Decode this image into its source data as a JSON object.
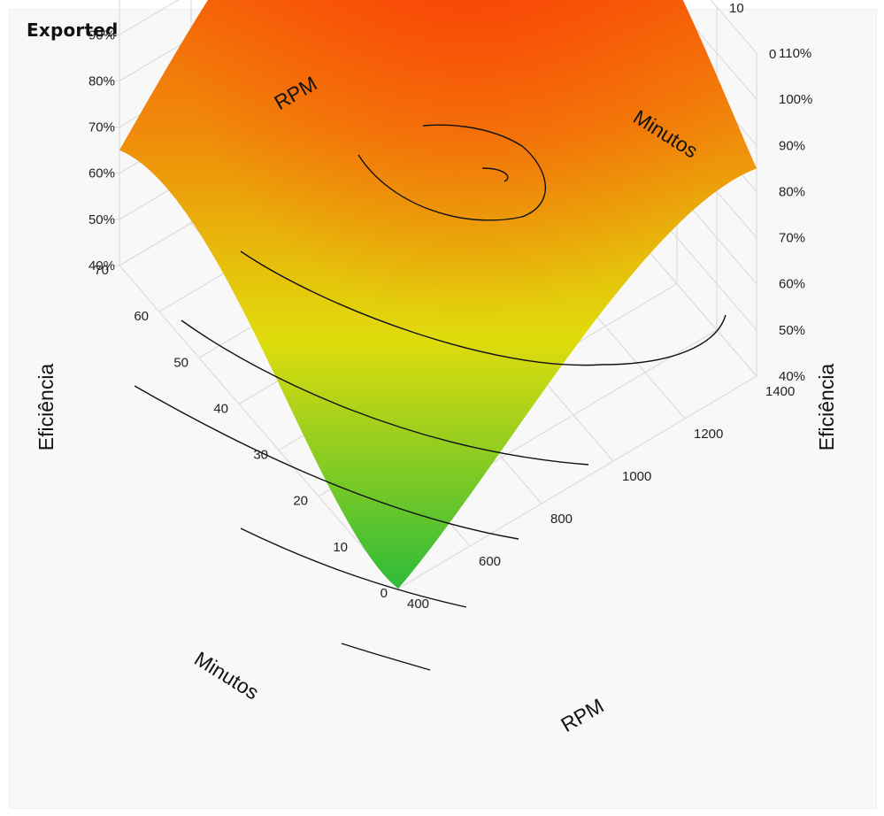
{
  "header": {
    "title": "Exported"
  },
  "chart_data": {
    "type": "surface",
    "z_axis_label": "Eficiência",
    "rpm_axis_label": "RPM",
    "minutes_axis_label": "Minutos",
    "rpm_ticks": [
      400,
      600,
      800,
      1000,
      1200,
      1400
    ],
    "minutes_ticks": [
      0,
      10,
      20,
      30,
      40,
      50,
      60,
      70
    ],
    "efficiency_ticks": [
      "40%",
      "50%",
      "60%",
      "70%",
      "80%",
      "90%",
      "100%",
      "110%"
    ],
    "efficiency_values": [
      40,
      50,
      60,
      70,
      80,
      90,
      100,
      110
    ],
    "xlim_rpm": [
      400,
      1400
    ],
    "ylim_minutes": [
      0,
      70
    ],
    "zlim_efficiency": [
      40,
      110
    ],
    "surface_corners": [
      {
        "rpm": 400,
        "minutes": 0,
        "efficiency": 40
      },
      {
        "rpm": 400,
        "minutes": 70,
        "efficiency": 65
      },
      {
        "rpm": 1400,
        "minutes": 70,
        "efficiency": 104
      },
      {
        "rpm": 1400,
        "minutes": 0,
        "efficiency": 85
      }
    ],
    "contour_levels": [
      50,
      60,
      70,
      80,
      90,
      100,
      106
    ],
    "colorscale": [
      "#2dbb3a",
      "#e0dc0c",
      "#f08a0a",
      "#fe2a05"
    ],
    "grid": true,
    "legend": "none"
  }
}
